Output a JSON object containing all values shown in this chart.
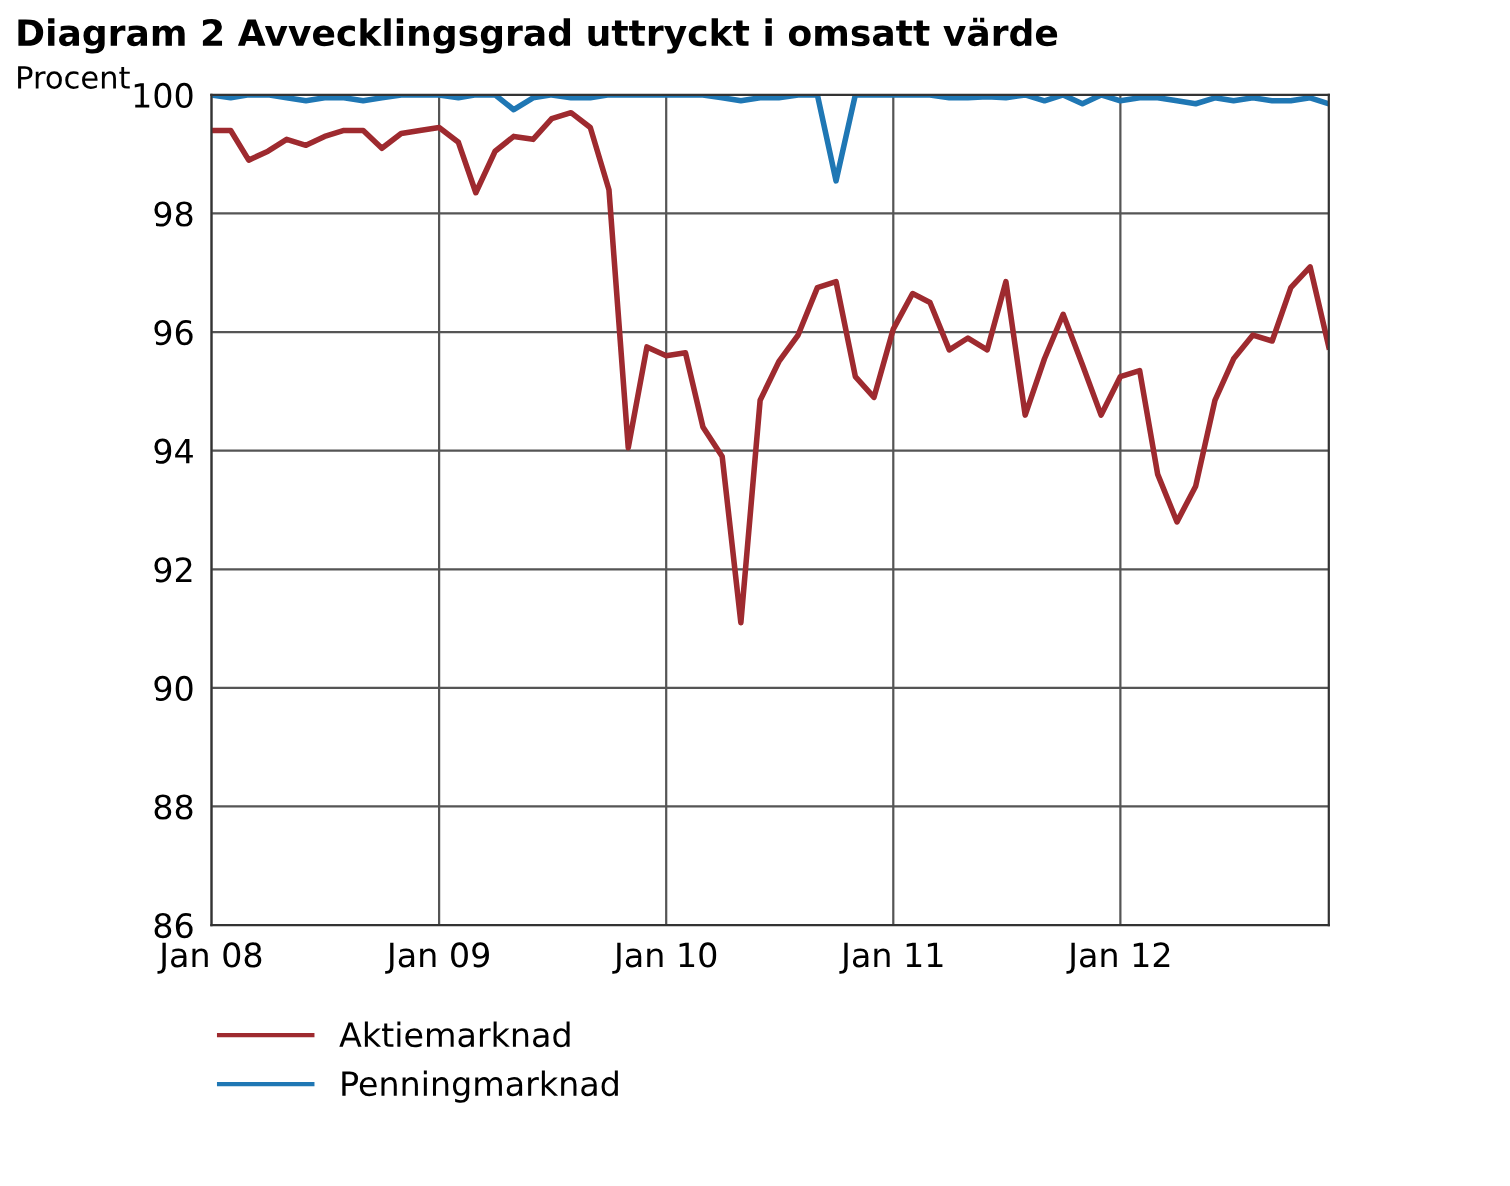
{
  "chart_data": {
    "type": "line",
    "title": "Diagram 2 Avvecklingsgrad uttryckt i omsatt värde",
    "ylabel": "Procent",
    "x": [
      "2008-01",
      "2008-02",
      "2008-03",
      "2008-04",
      "2008-05",
      "2008-06",
      "2008-07",
      "2008-08",
      "2008-09",
      "2008-10",
      "2008-11",
      "2008-12",
      "2009-01",
      "2009-02",
      "2009-03",
      "2009-04",
      "2009-05",
      "2009-06",
      "2009-07",
      "2009-08",
      "2009-09",
      "2009-10",
      "2009-11",
      "2009-12",
      "2010-01",
      "2010-02",
      "2010-03",
      "2010-04",
      "2010-05",
      "2010-06",
      "2010-07",
      "2010-08",
      "2010-09",
      "2010-10",
      "2010-11",
      "2010-12",
      "2011-01",
      "2011-02",
      "2011-03",
      "2011-04",
      "2011-05",
      "2011-06",
      "2011-07",
      "2011-08",
      "2011-09",
      "2011-10",
      "2011-11",
      "2011-12",
      "2012-01",
      "2012-02",
      "2012-03",
      "2012-04",
      "2012-05",
      "2012-06",
      "2012-07",
      "2012-08",
      "2012-09",
      "2012-10",
      "2012-11",
      "2012-12"
    ],
    "series": [
      {
        "name": "Aktiemarknad",
        "color": "#9e2a2f",
        "values": [
          99.4,
          99.4,
          98.9,
          99.05,
          99.25,
          99.15,
          99.3,
          99.4,
          99.4,
          99.1,
          99.35,
          99.4,
          99.45,
          99.2,
          98.35,
          99.05,
          99.3,
          99.25,
          99.6,
          99.7,
          99.45,
          98.4,
          94.05,
          95.75,
          95.6,
          95.65,
          94.4,
          93.9,
          91.1,
          94.85,
          95.5,
          95.95,
          96.75,
          96.85,
          95.25,
          94.9,
          96.05,
          96.65,
          96.5,
          95.7,
          95.9,
          95.7,
          96.85,
          94.6,
          95.55,
          96.3,
          95.45,
          94.6,
          95.25,
          95.35,
          93.6,
          92.8,
          93.4,
          94.85,
          95.55,
          95.95,
          95.85,
          96.75,
          97.1,
          95.75
        ]
      },
      {
        "name": "Penningmarknad",
        "color": "#1f77b4",
        "values": [
          100,
          99.95,
          100,
          100,
          99.95,
          99.9,
          99.95,
          99.95,
          99.9,
          99.95,
          100,
          100,
          100,
          99.95,
          100,
          100,
          99.75,
          99.95,
          100,
          99.95,
          99.95,
          100,
          100,
          100,
          100,
          100,
          100,
          99.95,
          99.9,
          99.95,
          99.95,
          100,
          100,
          98.55,
          100,
          100,
          100,
          100,
          100,
          99.95,
          99.95,
          99.97,
          99.95,
          100,
          99.9,
          100,
          99.85,
          100,
          99.9,
          99.95,
          99.95,
          99.9,
          99.85,
          99.95,
          99.9,
          99.95,
          99.9,
          99.9,
          99.95,
          99.85
        ]
      }
    ],
    "xlim": [
      "2008-01",
      "2012-12"
    ],
    "xticks": [
      {
        "value": "2008-01",
        "label": "Jan 08"
      },
      {
        "value": "2009-01",
        "label": "Jan 09"
      },
      {
        "value": "2010-01",
        "label": "Jan 10"
      },
      {
        "value": "2011-01",
        "label": "Jan 11"
      },
      {
        "value": "2012-01",
        "label": "Jan 12"
      }
    ],
    "ylim": [
      86,
      100
    ],
    "yticks": [
      86,
      88,
      90,
      92,
      94,
      96,
      98,
      100
    ],
    "grid": true,
    "legend": "bottom",
    "marker": "none",
    "line_style": "solid"
  }
}
